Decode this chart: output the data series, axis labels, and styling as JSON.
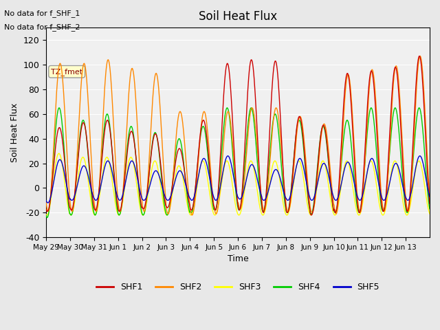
{
  "title": "Soil Heat Flux",
  "ylabel": "Soil Heat Flux",
  "xlabel": "Time",
  "annotation_lines": [
    "No data for f_SHF_1",
    "No data for f_SHF_2"
  ],
  "tz_label": "TZ_fmet",
  "ylim": [
    -40,
    130
  ],
  "yticks": [
    -40,
    -20,
    0,
    20,
    40,
    60,
    80,
    100,
    120
  ],
  "xtick_labels": [
    "May 29",
    "May 30",
    "May 31",
    "Jun 1",
    "Jun 2",
    "Jun 3",
    "Jun 4",
    "Jun 5",
    "Jun 6",
    "Jun 7",
    "Jun 8",
    "Jun 9",
    "Jun 10",
    "Jun 11",
    "Jun 12",
    "Jun 13"
  ],
  "series_colors": {
    "SHF1": "#cc0000",
    "SHF2": "#ff8800",
    "SHF3": "#ffff00",
    "SHF4": "#00cc00",
    "SHF5": "#0000cc"
  },
  "legend_colors": [
    "#cc0000",
    "#ff8800",
    "#ffff00",
    "#00cc00",
    "#0000cc"
  ],
  "bg_color": "#e8e8e8",
  "plot_bg": "#f0f0f0",
  "n_days": 16,
  "pts_per_day": 48,
  "day_peaks_SHF1": [
    49,
    53,
    55,
    46,
    44,
    32,
    55,
    101,
    104,
    103,
    58,
    51,
    93,
    95,
    98,
    107
  ],
  "day_peaks_SHF2": [
    101,
    101,
    104,
    97,
    93,
    62,
    62,
    62,
    65,
    65,
    58,
    52,
    92,
    96,
    99,
    107
  ],
  "day_peaks_SHF3": [
    28,
    25,
    25,
    25,
    22,
    18,
    22,
    22,
    22,
    22,
    22,
    22,
    22,
    22,
    22,
    22
  ],
  "day_peaks_SHF4": [
    65,
    55,
    60,
    50,
    45,
    40,
    50,
    65,
    65,
    60,
    55,
    50,
    55,
    65,
    65,
    65
  ],
  "day_peaks_SHF5": [
    23,
    18,
    22,
    22,
    14,
    14,
    24,
    26,
    19,
    15,
    24,
    20,
    21,
    24,
    20,
    26
  ],
  "day_troughs_SHF1": [
    -19,
    -18,
    -18,
    -19,
    -17,
    -16,
    -18,
    -18,
    -18,
    -20,
    -20,
    -22,
    -20,
    -20,
    -19,
    -19
  ],
  "day_troughs_SHF2": [
    -19,
    -19,
    -19,
    -19,
    -19,
    -21,
    -22,
    -21,
    -17,
    -18,
    -19,
    -20,
    -21,
    -20,
    -19,
    -19
  ],
  "day_troughs_SHF3": [
    -22,
    -22,
    -22,
    -22,
    -22,
    -22,
    -22,
    -22,
    -22,
    -22,
    -22,
    -22,
    -22,
    -22,
    -22,
    -22
  ],
  "day_troughs_SHF4": [
    -24,
    -22,
    -22,
    -22,
    -22,
    -22,
    -20,
    -18,
    -18,
    -19,
    -20,
    -21,
    -20,
    -20,
    -19,
    -20
  ],
  "day_troughs_SHF5": [
    -12,
    -10,
    -10,
    -10,
    -10,
    -10,
    -10,
    -10,
    -9,
    -10,
    -10,
    -10,
    -10,
    -10,
    -10,
    -10
  ]
}
